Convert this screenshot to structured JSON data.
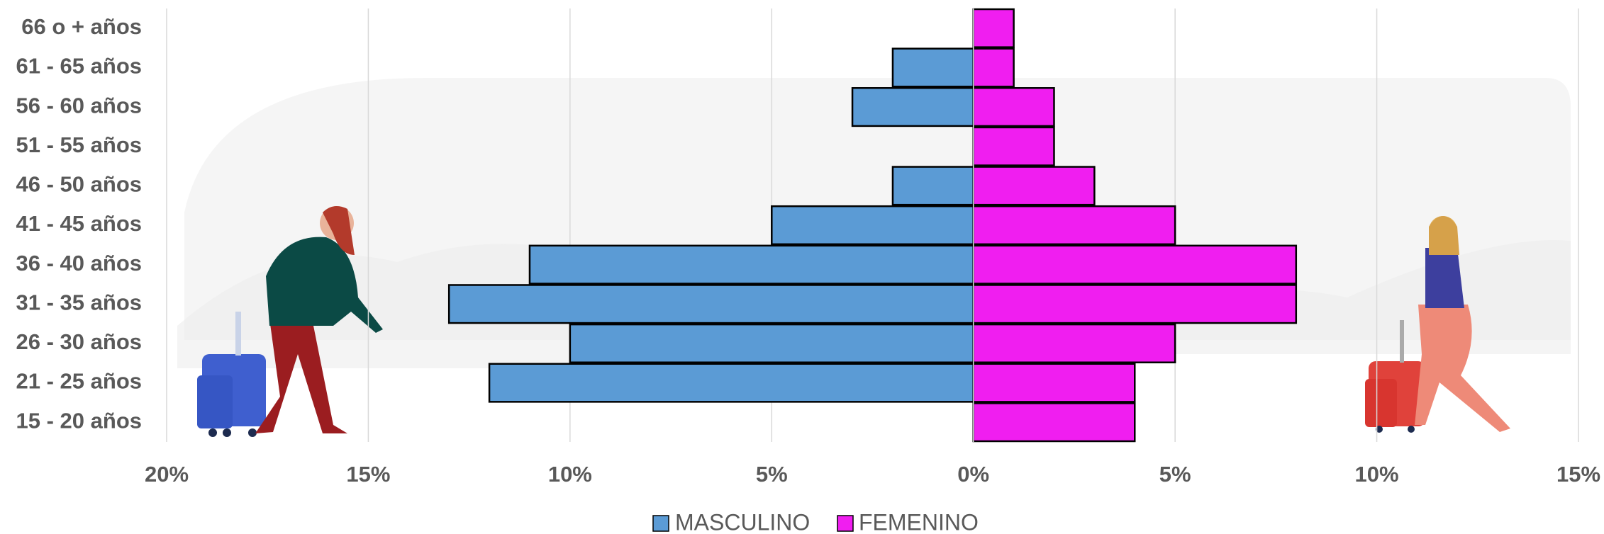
{
  "chart_data": {
    "type": "bar",
    "orientation": "horizontal",
    "categories": [
      "66 o + años",
      "61 - 65 años",
      "56 - 60 años",
      "51 - 55 años",
      "46 - 50 años",
      "41 - 45 años",
      "36 - 40 años",
      "31 - 35 años",
      "26 - 30 años",
      "21 - 25 años",
      "15 - 20 años"
    ],
    "series": [
      {
        "name": "MASCULINO",
        "color": "#5b9bd5",
        "values": [
          0,
          -2,
          -3,
          0,
          -2,
          -5,
          -11,
          -13,
          -10,
          -12,
          0
        ]
      },
      {
        "name": "FEMENINO",
        "color": "#f01ef0",
        "values": [
          1,
          1,
          2,
          2,
          3,
          5,
          8,
          8,
          5,
          4,
          4
        ]
      }
    ],
    "xlim": [
      -20,
      15
    ],
    "xticks": [
      {
        "value": -20,
        "label": "20%"
      },
      {
        "value": -15,
        "label": "15%"
      },
      {
        "value": -10,
        "label": "10%"
      },
      {
        "value": -5,
        "label": "5%"
      },
      {
        "value": 0,
        "label": "0%"
      },
      {
        "value": 5,
        "label": "5%"
      },
      {
        "value": 10,
        "label": "10%"
      },
      {
        "value": 15,
        "label": "15%"
      }
    ],
    "grid": true,
    "legend": "bottom"
  }
}
